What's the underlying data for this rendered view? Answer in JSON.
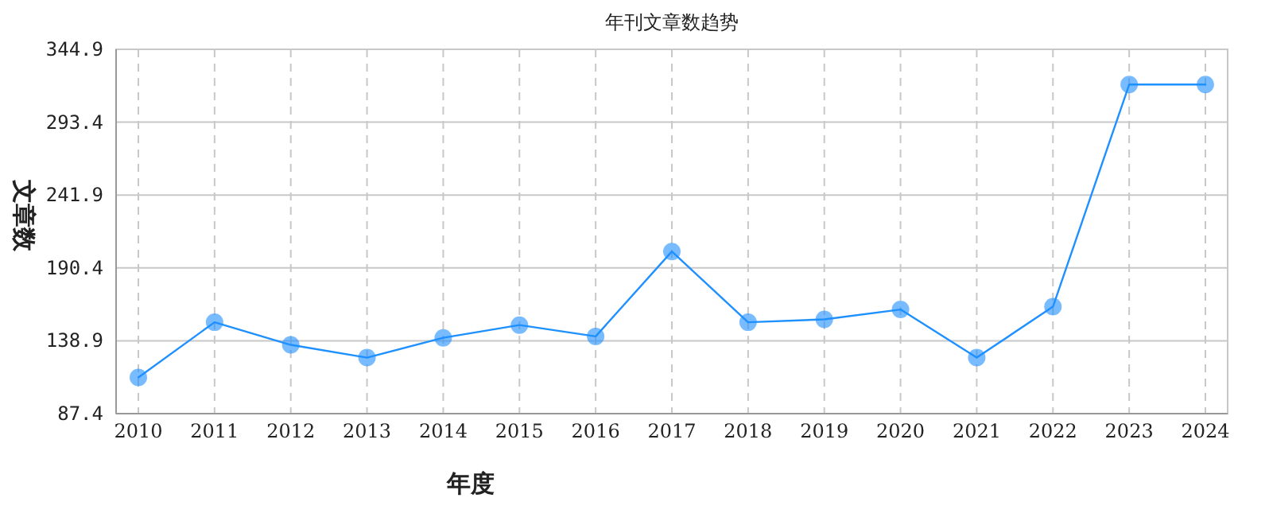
{
  "chart_data": {
    "type": "line",
    "title": "年刊文章数趋势",
    "xlabel": "年度",
    "ylabel": "文章数",
    "categories": [
      "2010",
      "2011",
      "2012",
      "2013",
      "2014",
      "2015",
      "2016",
      "2017",
      "2018",
      "2019",
      "2020",
      "2021",
      "2022",
      "2023",
      "2024"
    ],
    "series": [
      {
        "color": "#1e90ff",
        "values": [
          113,
          152,
          136,
          127,
          141,
          150,
          142,
          202,
          152,
          154,
          161,
          127,
          163,
          320,
          320
        ]
      }
    ],
    "ylim": [
      87.4,
      344.9
    ],
    "yticks": [
      87.4,
      138.9,
      190.4,
      241.9,
      293.4,
      344.9
    ],
    "grid": true,
    "marker": "circle",
    "line_style": "solid"
  }
}
